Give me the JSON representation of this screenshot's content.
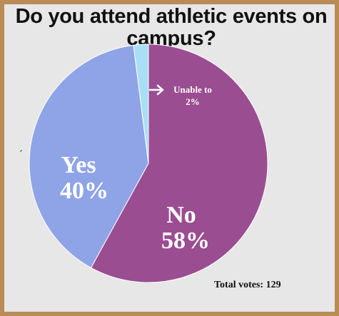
{
  "title": "Do you attend athletic events on campus?",
  "footer": {
    "total_votes": "Total votes: 129"
  },
  "colors": {
    "background": "#e7e7e7",
    "border": "#b98b55",
    "no": "#9b4d92",
    "yes": "#8fa4e6",
    "unable": "#a9dff6"
  },
  "chart_data": {
    "type": "pie",
    "title": "Do you attend athletic events on campus?",
    "slices": [
      {
        "label": "No",
        "value": 58,
        "percent_label": "58%",
        "color": "#9b4d92"
      },
      {
        "label": "Yes",
        "value": 40,
        "percent_label": "40%",
        "color": "#8fa4e6"
      },
      {
        "label": "Unable to",
        "value": 2,
        "percent_label": "2%",
        "color": "#a9dff6"
      }
    ],
    "total_votes": 129
  }
}
